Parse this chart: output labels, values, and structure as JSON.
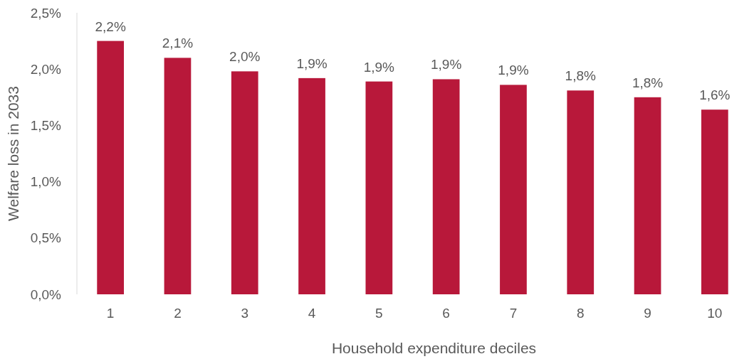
{
  "chart_data": {
    "type": "bar",
    "xlabel": "Household expenditure deciles",
    "ylabel": "Welfare loss in 2033",
    "categories": [
      "1",
      "2",
      "3",
      "4",
      "5",
      "6",
      "7",
      "8",
      "9",
      "10"
    ],
    "values": [
      2.25,
      2.1,
      1.98,
      1.92,
      1.89,
      1.91,
      1.86,
      1.81,
      1.75,
      1.64
    ],
    "value_labels": [
      "2,2%",
      "2,1%",
      "2,0%",
      "1,9%",
      "1,9%",
      "1,9%",
      "1,9%",
      "1,8%",
      "1,8%",
      "1,6%"
    ],
    "color": "#b8183a",
    "ylim": [
      0,
      2.5
    ],
    "yticks": [
      {
        "value": 0,
        "label": "0,0%"
      },
      {
        "value": 0.5,
        "label": "0,5%"
      },
      {
        "value": 1,
        "label": "1,0%"
      },
      {
        "value": 1.5,
        "label": "1,5%"
      },
      {
        "value": 2,
        "label": "2,0%"
      },
      {
        "value": 2.5,
        "label": "2,5%"
      }
    ],
    "grid": false
  }
}
